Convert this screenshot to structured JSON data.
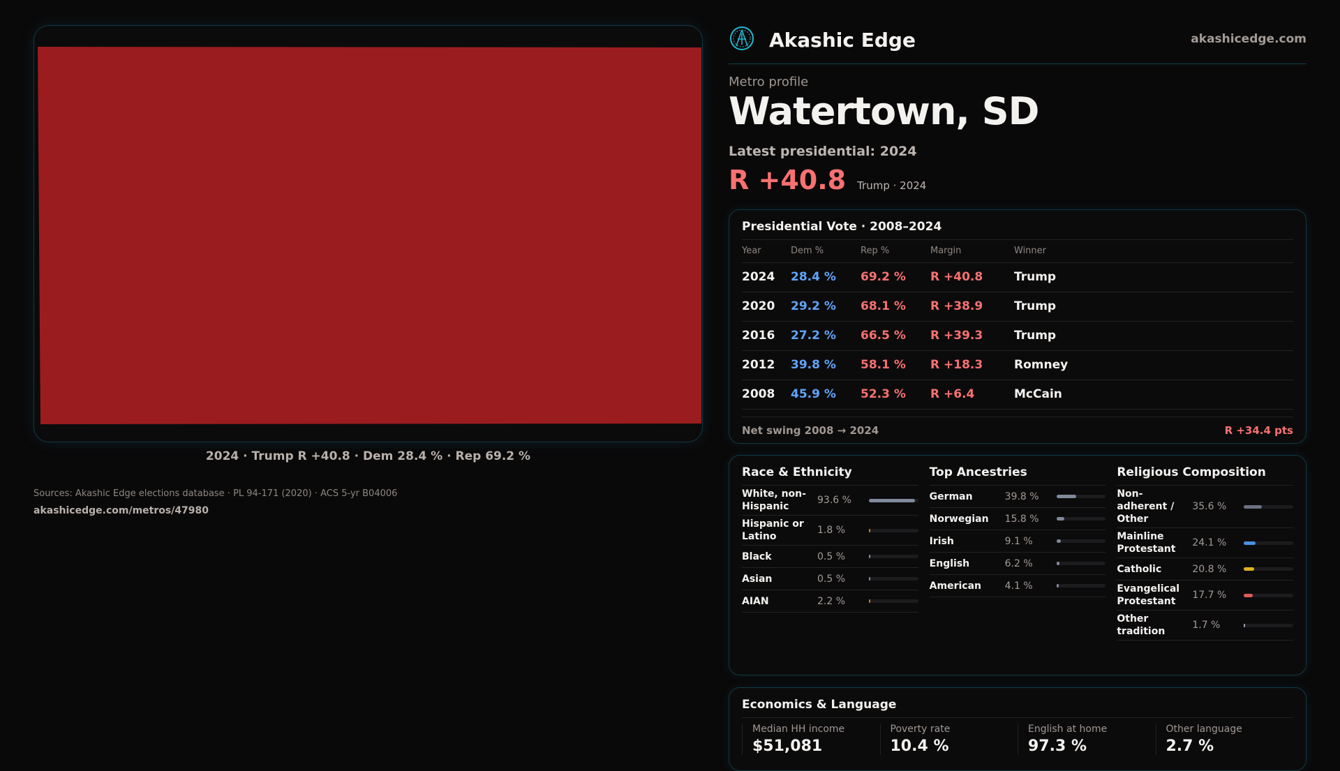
{
  "map": {
    "fill_color": "#9b1c1f",
    "caption": "2024 · Trump R +40.8 · Dem 28.4 % · Rep 69.2 %"
  },
  "header": {
    "brand": "Akashic Edge",
    "site": "akashicedge.com",
    "logo_icon": "compass-logo-icon"
  },
  "profile": {
    "kicker": "Metro profile",
    "title": "Watertown, SD",
    "latest": "Latest presidential: 2024",
    "margin": "R +40.8",
    "margin_sub": "Trump · 2024"
  },
  "vote": {
    "title": "Presidential Vote · 2008–2024",
    "headers": [
      "Year",
      "Dem %",
      "Rep %",
      "Margin",
      "Winner"
    ],
    "rows": [
      [
        "2024",
        "28.4 %",
        "69.2 %",
        "R +40.8",
        "Trump"
      ],
      [
        "2020",
        "29.2 %",
        "68.1 %",
        "R +38.9",
        "Trump"
      ],
      [
        "2016",
        "27.2 %",
        "66.5 %",
        "R +39.3",
        "Trump"
      ],
      [
        "2012",
        "39.8 %",
        "58.1 %",
        "R +18.3",
        "Romney"
      ],
      [
        "2008",
        "45.9 %",
        "52.3 %",
        "R +6.4",
        "McCain"
      ]
    ],
    "swing_label": "Net swing 2008 → 2024",
    "swing_value": "R +34.4 pts"
  },
  "race": {
    "title": "Race & Ethnicity",
    "items": [
      {
        "label": "White, non-Hispanic",
        "value": "93.6 %",
        "pct": 93.6,
        "color": "#7f8a9c"
      },
      {
        "label": "Hispanic or Latino",
        "value": "1.8 %",
        "pct": 1.8,
        "color": "#d97706"
      },
      {
        "label": "Black",
        "value": "0.5 %",
        "pct": 0.5,
        "color": "#7f8a9c"
      },
      {
        "label": "Asian",
        "value": "0.5 %",
        "pct": 0.5,
        "color": "#7f8a9c"
      },
      {
        "label": "AIAN",
        "value": "2.2 %",
        "pct": 2.2,
        "color": "#d97706"
      }
    ]
  },
  "ancestry": {
    "title": "Top Ancestries",
    "items": [
      {
        "label": "German",
        "value": "39.8 %",
        "pct": 39.8,
        "color": "#7f8a9c"
      },
      {
        "label": "Norwegian",
        "value": "15.8 %",
        "pct": 15.8,
        "color": "#7f8a9c"
      },
      {
        "label": "Irish",
        "value": "9.1 %",
        "pct": 9.1,
        "color": "#7f8a9c"
      },
      {
        "label": "English",
        "value": "6.2 %",
        "pct": 6.2,
        "color": "#7f8a9c"
      },
      {
        "label": "American",
        "value": "4.1 %",
        "pct": 4.1,
        "color": "#7f8a9c"
      }
    ]
  },
  "religion": {
    "title": "Religious Composition",
    "items": [
      {
        "label": "Non-adherent / Other",
        "value": "35.6 %",
        "pct": 35.6,
        "color": "#6b7280"
      },
      {
        "label": "Mainline Protestant",
        "value": "24.1 %",
        "pct": 24.1,
        "color": "#4a90e2"
      },
      {
        "label": "Catholic",
        "value": "20.8 %",
        "pct": 20.8,
        "color": "#e0b020"
      },
      {
        "label": "Evangelical Protestant",
        "value": "17.7 %",
        "pct": 17.7,
        "color": "#e05a5a"
      },
      {
        "label": "Other tradition",
        "value": "1.7 %",
        "pct": 1.7,
        "color": "#9ca3af"
      }
    ]
  },
  "econ": {
    "title": "Economics & Language",
    "stats": [
      {
        "label": "Median HH income",
        "value": "$51,081"
      },
      {
        "label": "Poverty rate",
        "value": "10.4 %"
      },
      {
        "label": "English at home",
        "value": "97.3 %"
      },
      {
        "label": "Other language",
        "value": "2.7 %"
      }
    ]
  },
  "footer": {
    "sources": "Sources: Akashic Edge elections database · PL 94-171 (2020) · ACS 5-yr B04006",
    "permalink": "akashicedge.com/metros/47980"
  }
}
